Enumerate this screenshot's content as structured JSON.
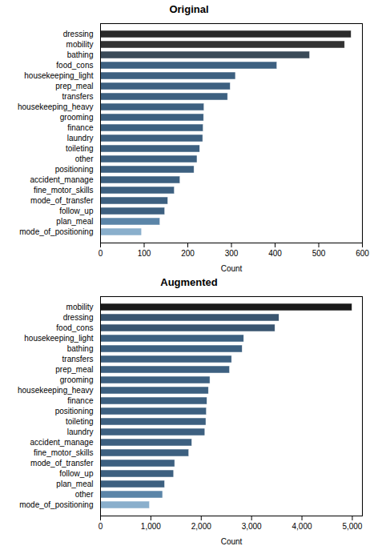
{
  "chart_data": [
    {
      "type": "bar",
      "title": "Original",
      "orientation": "horizontal",
      "grid": false,
      "categories": [
        "dressing",
        "mobility",
        "bathing",
        "food_cons",
        "housekeeping_light",
        "prep_meal",
        "transfers",
        "housekeeping_heavy",
        "grooming",
        "finance",
        "laundry",
        "toileting",
        "other",
        "positioning",
        "accident_manage",
        "fine_motor_skills",
        "mode_of_transfer",
        "follow_up",
        "plan_meal",
        "mode_of_positioning"
      ],
      "values": [
        575,
        560,
        480,
        405,
        310,
        298,
        292,
        238,
        237,
        236,
        235,
        228,
        222,
        215,
        183,
        170,
        155,
        148,
        137,
        95
      ],
      "colors": [
        "#2a2a2a",
        "#323232",
        "#3a4a58",
        "#3d6080",
        "#3d6080",
        "#3d6080",
        "#3d6080",
        "#3d6080",
        "#3d6080",
        "#3d6080",
        "#3d6080",
        "#3d6080",
        "#3d6080",
        "#3d6080",
        "#3d6080",
        "#3d6080",
        "#3d6080",
        "#3d6080",
        "#5b85a8",
        "#8aafcc"
      ],
      "xlim": [
        0,
        600
      ],
      "xticks": [
        0,
        100,
        200,
        300,
        400,
        500,
        600
      ],
      "xlabel": "Count"
    },
    {
      "type": "bar",
      "title": "Augmented",
      "orientation": "horizontal",
      "grid": false,
      "categories": [
        "mobility",
        "dressing",
        "food_cons",
        "housekeeping_light",
        "bathing",
        "transfers",
        "prep_meal",
        "grooming",
        "housekeeping_heavy",
        "finance",
        "positioning",
        "toileting",
        "laundry",
        "accident_manage",
        "fine_motor_skills",
        "mode_of_transfer",
        "follow_up",
        "plan_meal",
        "other",
        "mode_of_positioning"
      ],
      "values": [
        5000,
        3550,
        3470,
        2850,
        2820,
        2610,
        2570,
        2180,
        2150,
        2120,
        2110,
        2100,
        2080,
        1820,
        1760,
        1480,
        1460,
        1280,
        1240,
        980
      ],
      "colors": [
        "#1a1a1a",
        "#3a5570",
        "#3a5570",
        "#3d6080",
        "#3d6080",
        "#3d6080",
        "#3d6080",
        "#3d6080",
        "#3d6080",
        "#3d6080",
        "#3d6080",
        "#3d6080",
        "#3d6080",
        "#3d6080",
        "#3d6080",
        "#3d6080",
        "#3d6080",
        "#3d6080",
        "#5b85a8",
        "#8aafcc"
      ],
      "xlim": [
        0,
        5200
      ],
      "xticks": [
        0,
        1000,
        2000,
        3000,
        4000,
        5000
      ],
      "xlabel": "Count"
    }
  ]
}
